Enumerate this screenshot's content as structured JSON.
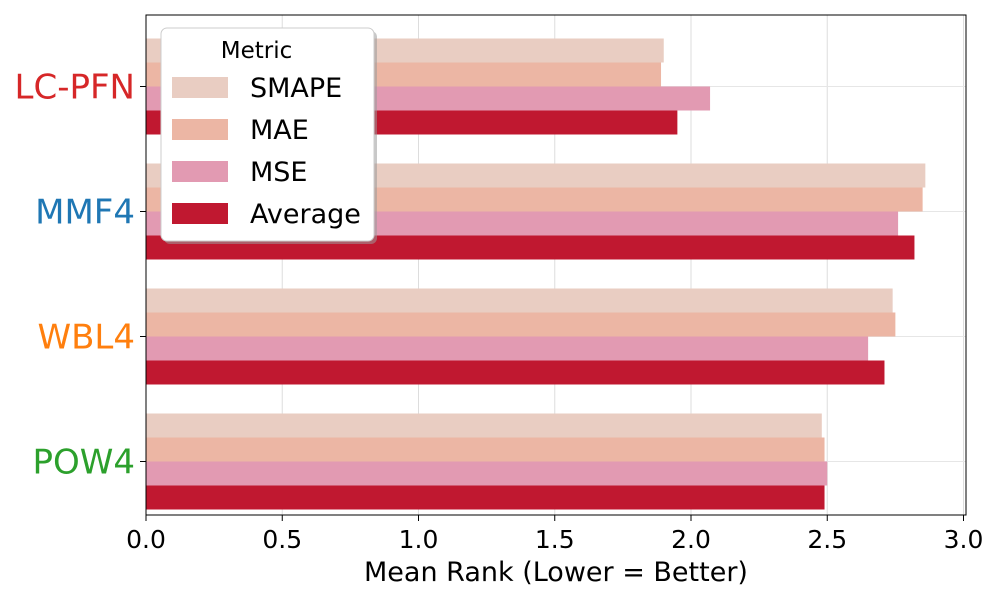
{
  "chart_data": {
    "type": "bar",
    "orientation": "horizontal",
    "title": "",
    "xlabel": "Mean Rank (Lower = Better)",
    "ylabel": "",
    "xlim": [
      0,
      3.0
    ],
    "xticks": [
      "0.0",
      "0.5",
      "1.0",
      "1.5",
      "2.0",
      "2.5",
      "3.0"
    ],
    "xtick_values": [
      0,
      0.5,
      1.0,
      1.5,
      2.0,
      2.5,
      3.0
    ],
    "grid": true,
    "legend": {
      "title": "Metric",
      "placement": "upper-left"
    },
    "categories": [
      "LC-PFN",
      "MMF4",
      "WBL4",
      "POW4"
    ],
    "category_colors": [
      "#d62728",
      "#1f77b4",
      "#ff7f0e",
      "#2ca02c"
    ],
    "series": [
      {
        "name": "SMAPE",
        "color": "#e9cdc2",
        "values": [
          1.9,
          2.86,
          2.74,
          2.48
        ]
      },
      {
        "name": "MAE",
        "color": "#ecb6a4",
        "values": [
          1.89,
          2.85,
          2.75,
          2.49
        ]
      },
      {
        "name": "MSE",
        "color": "#e29ab2",
        "values": [
          2.07,
          2.76,
          2.65,
          2.5
        ]
      },
      {
        "name": "Average",
        "color": "#c01830",
        "values": [
          1.95,
          2.82,
          2.71,
          2.49
        ]
      }
    ]
  }
}
